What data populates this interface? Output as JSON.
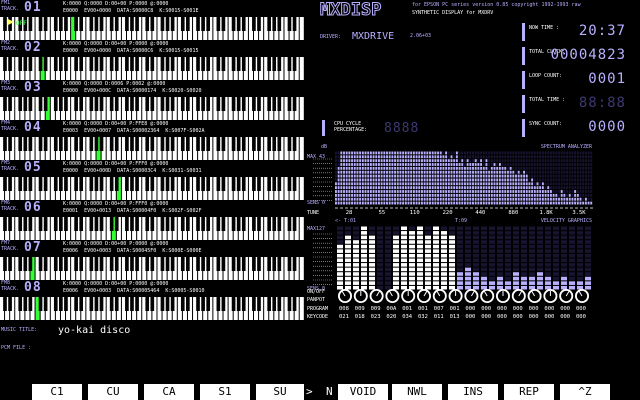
{
  "app": {
    "logo_text": "MXDISP",
    "subtitle": "for EPSON PC series version 0.85 copyright 1992-1993 raw",
    "subtitle2": "SYNTHETIC DISPLAY for MXDRV",
    "driver_label": "DRIVER:",
    "driver_name": "MXDRIVE",
    "driver_version": "2.06+03"
  },
  "tracks": [
    {
      "label": "FM1 TRACK.",
      "num": "01",
      "r1": "K:0000 Q:0000 D:00+00 P:0000 @:0000",
      "r2": "E0000  EV00+0000  DATA:S0000C8  K:S0015-S001E",
      "key": 14,
      "note_label": "OFF"
    },
    {
      "label": "FM2 TRACK.",
      "num": "02",
      "r1": "K:0000 Q:0000 D:00+00 P:0000 @:0000",
      "r2": "E0000  EV00+0000  DATA:S0000C6  K:S0015-S0015",
      "key": 8
    },
    {
      "label": "FM3 TRACK.",
      "num": "03",
      "r1": "K:0000 Q:0000 D:0006 P:0002 @:0000",
      "r2": "E0000  EV00+000C  DATA:S0000174  K:S0020-S0020",
      "key": 9
    },
    {
      "label": "FM4 TRACK.",
      "num": "04",
      "r1": "K:0000 Q:0000 D:00+00 P:FFE8 @:0000",
      "r2": "E0003  EV00+0007  DATA:S00002364  K:S007F-S002A",
      "key": 19
    },
    {
      "label": "FM5 TRACK.",
      "num": "05",
      "r1": "K:0000 Q:0000 D:00+00 P:FFF0 @:0000",
      "r2": "E0000  EV00+000D  DATA:S00003C4  K:S0031-S0031",
      "key": 23
    },
    {
      "label": "FM6 TRACK.",
      "num": "06",
      "r1": "K:0000 Q:0000 D:00+00 P:FFF0 @:0000",
      "r2": "E0001  EV00+0013  DATA:S00004F0  K:S002F-S002F",
      "key": 22
    },
    {
      "label": "FM7 TRACK.",
      "num": "07",
      "r1": "K:0000 Q:0000 D:00+00 P:0000 @:0000",
      "r2": "E0006  EV00+0003  DATA:S00045F0  K:S000E-S000E",
      "key": 6
    },
    {
      "label": "FM8 TRACK.",
      "num": "08",
      "r1": "K:0000 Q:0000 D:00+00 P:0000 @:0000",
      "r2": "E0006  EV00+0003  DATA:S00005464  K:S0005-S0010",
      "key": 7
    }
  ],
  "stats": [
    {
      "label": "NOW TIME :",
      "value": "20:37",
      "dim": false
    },
    {
      "label": "TOTAL CLOCK:",
      "value": "00004823",
      "dim": false
    },
    {
      "label": "LOOP COUNT:",
      "value": "0001",
      "dim": false
    },
    {
      "label": "TOTAL TIME :",
      "value": "88:88",
      "dim": true
    },
    {
      "label": "SYNC COUNT:",
      "value": "0000",
      "dim": false
    }
  ],
  "cpu": {
    "label": "CPU CYCLE PERCENTAGE:",
    "value": "8888"
  },
  "spectrum": {
    "title": "SPECTRUM ANALYZER",
    "db_label": "dB",
    "max_label": "MAX 43",
    "sens_label": "SENS 0",
    "tune_label": "TUNE",
    "freq_labels": [
      "28",
      "55",
      "110",
      "220",
      "440",
      "880",
      "1.8K",
      "3.5K"
    ],
    "levels": [
      6,
      10,
      14,
      14,
      14,
      14,
      14,
      14,
      14,
      14,
      14,
      14,
      14,
      14,
      14,
      14,
      14,
      14,
      14,
      14,
      14,
      14,
      14,
      14,
      14,
      14,
      14,
      14,
      14,
      14,
      14,
      14,
      14,
      14,
      14,
      14,
      14,
      14,
      14,
      14,
      13,
      14,
      12,
      13,
      12,
      14,
      11,
      12,
      10,
      12,
      11,
      11,
      12,
      11,
      12,
      10,
      12,
      9,
      10,
      11,
      10,
      11,
      10,
      10,
      9,
      10,
      9,
      8,
      9,
      8,
      9,
      8,
      6,
      7,
      5,
      6,
      5,
      6,
      4,
      5,
      4,
      3,
      3,
      2,
      4,
      3,
      2,
      3,
      2,
      4,
      3,
      2,
      1,
      2,
      1,
      1
    ]
  },
  "velocity": {
    "title": "VELOCITY GRAPHICS",
    "max_label": "MAX127",
    "sens_label": "SENS 0",
    "left_label": "<- T:01",
    "right_label": "T:09",
    "levels": [
      10,
      12,
      11,
      14,
      12,
      0,
      0,
      12,
      14,
      13,
      14,
      12,
      14,
      13,
      12,
      4,
      5,
      4,
      3,
      2,
      3,
      2,
      4,
      3,
      3,
      4,
      3,
      2,
      3,
      2,
      2,
      3
    ]
  },
  "pan": {
    "row_label": "ON/OFF",
    "pan_label": "PANPOT",
    "program_label": "PROGRAM",
    "keycode_label": "KEYCODE",
    "program": [
      "008",
      "009",
      "009",
      "00A",
      "001",
      "001",
      "007",
      "001",
      "000",
      "000",
      "000",
      "000",
      "000",
      "000",
      "000",
      "000"
    ],
    "keycode": [
      "021",
      "018",
      "023",
      "020",
      "034",
      "032",
      "011",
      "013",
      "000",
      "000",
      "000",
      "000",
      "000",
      "000",
      "000",
      "000"
    ]
  },
  "music": {
    "title_label": "MUSIC TITLE:",
    "title_value": "yo-kai disco",
    "pcm_label": "PCM FILE  :"
  },
  "fkeys": [
    {
      "label": "C1"
    },
    {
      "label": "CU"
    },
    {
      "label": "CA"
    },
    {
      "label": "S1"
    },
    {
      "label": "SU"
    },
    {
      "label": "VOID"
    },
    {
      "label": "NWL"
    },
    {
      "label": "INS"
    },
    {
      "label": "REP"
    },
    {
      "label": "^Z"
    }
  ],
  "fkey_arrow": ">",
  "fkey_n": "N",
  "colors": {
    "accent": "#b8b0ff",
    "dim": "#3c3870",
    "highlight": "#33ff33",
    "yellow": "#ffff66"
  }
}
